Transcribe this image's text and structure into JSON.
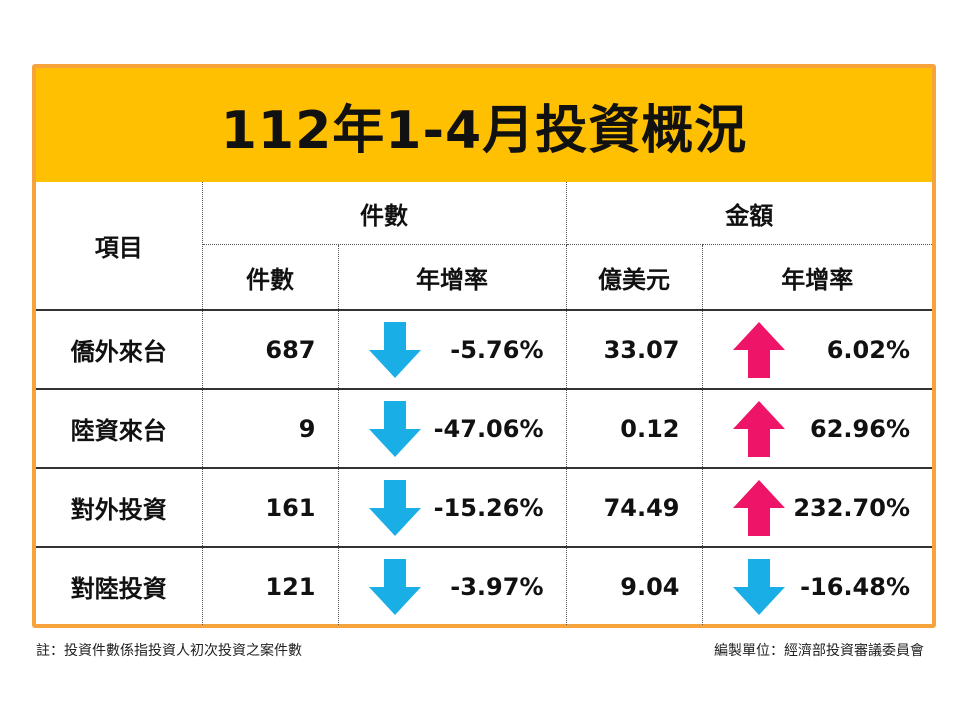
{
  "title": "112年1-4月投資概況",
  "header": {
    "item": "項目",
    "group_count": "件數",
    "group_amount": "金額",
    "sub_count": "件數",
    "sub_count_rate": "年增率",
    "sub_amount": "億美元",
    "sub_amount_rate": "年增率"
  },
  "rows": [
    {
      "name": "僑外來台",
      "count": "687",
      "count_rate": "-5.76%",
      "count_dir": "down",
      "amount": "33.07",
      "amount_rate": "6.02%",
      "amount_dir": "up"
    },
    {
      "name": "陸資來台",
      "count": "9",
      "count_rate": "-47.06%",
      "count_dir": "down",
      "amount": "0.12",
      "amount_rate": "62.96%",
      "amount_dir": "up"
    },
    {
      "name": "對外投資",
      "count": "161",
      "count_rate": "-15.26%",
      "count_dir": "down",
      "amount": "74.49",
      "amount_rate": "232.70%",
      "amount_dir": "up"
    },
    {
      "name": "對陸投資",
      "count": "121",
      "count_rate": "-3.97%",
      "count_dir": "down",
      "amount": "9.04",
      "amount_rate": "-16.48%",
      "amount_dir": "down"
    }
  ],
  "footer": {
    "note": "註：投資件數係指投資人初次投資之案件數",
    "compiled_by": "編製單位：經濟部投資審議委員會"
  },
  "colors": {
    "title_bg": "#fec000",
    "frame": "#f5a33a",
    "down_arrow": "#1aaee6",
    "up_arrow": "#ee1568"
  }
}
